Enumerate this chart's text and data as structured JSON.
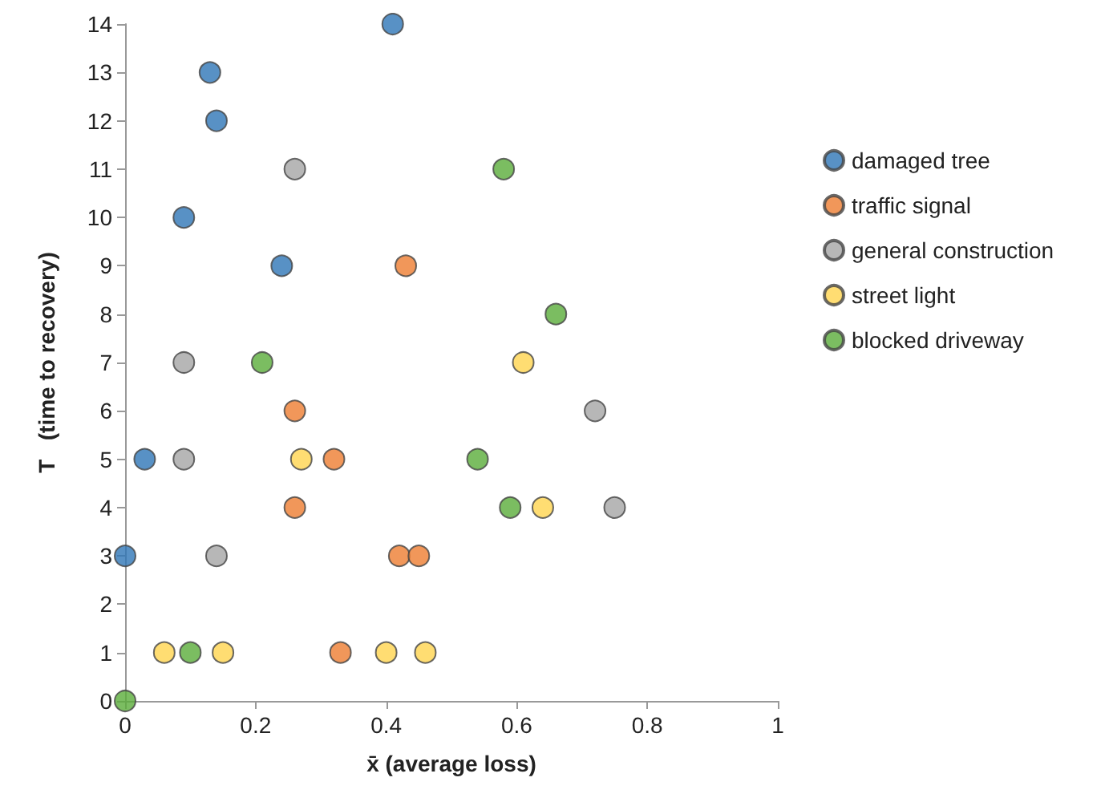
{
  "chart_data": {
    "type": "scatter",
    "xlabel": "x̄ (average loss)",
    "ylabel": "T   (time to recovery)",
    "xlim": [
      0,
      1
    ],
    "xticks": [
      0,
      0.2,
      0.4,
      0.6,
      0.8,
      1
    ],
    "ylim": [
      0,
      14
    ],
    "yticks": [
      0,
      1,
      2,
      3,
      4,
      5,
      6,
      7,
      8,
      9,
      10,
      11,
      12,
      13,
      14
    ],
    "grid": false,
    "legend": "right",
    "marker": "circle",
    "series": [
      {
        "name": "damaged tree",
        "color": "#2e75b6",
        "x": [
          0.41,
          0.13,
          0.14,
          0.09,
          0.24,
          0.03,
          0
        ],
        "values": [
          14,
          13,
          12,
          10,
          9,
          5,
          3
        ]
      },
      {
        "name": "traffic signal",
        "color": "#ed7d31",
        "x": [
          0.43,
          0.26,
          0.32,
          0.26,
          0.42,
          0.45,
          0.33
        ],
        "values": [
          9,
          6,
          5,
          4,
          3,
          3,
          1
        ]
      },
      {
        "name": "general construction",
        "color": "#a5a5a5",
        "x": [
          0.26,
          0.09,
          0.09,
          0.14,
          0.72,
          0.75
        ],
        "values": [
          11,
          7,
          5,
          3,
          6,
          4
        ]
      },
      {
        "name": "street light",
        "color": "#ffd54f",
        "x": [
          0.06,
          0.15,
          0.4,
          0.46,
          0.27,
          0.61,
          0.64
        ],
        "values": [
          1,
          1,
          1,
          1,
          5,
          7,
          4
        ]
      },
      {
        "name": "blocked driveway",
        "color": "#5aad3a",
        "x": [
          0,
          0.1,
          0.21,
          0.66,
          0.54,
          0.59,
          0.58
        ],
        "values": [
          0,
          1,
          7,
          8,
          5,
          4,
          11
        ]
      }
    ]
  }
}
